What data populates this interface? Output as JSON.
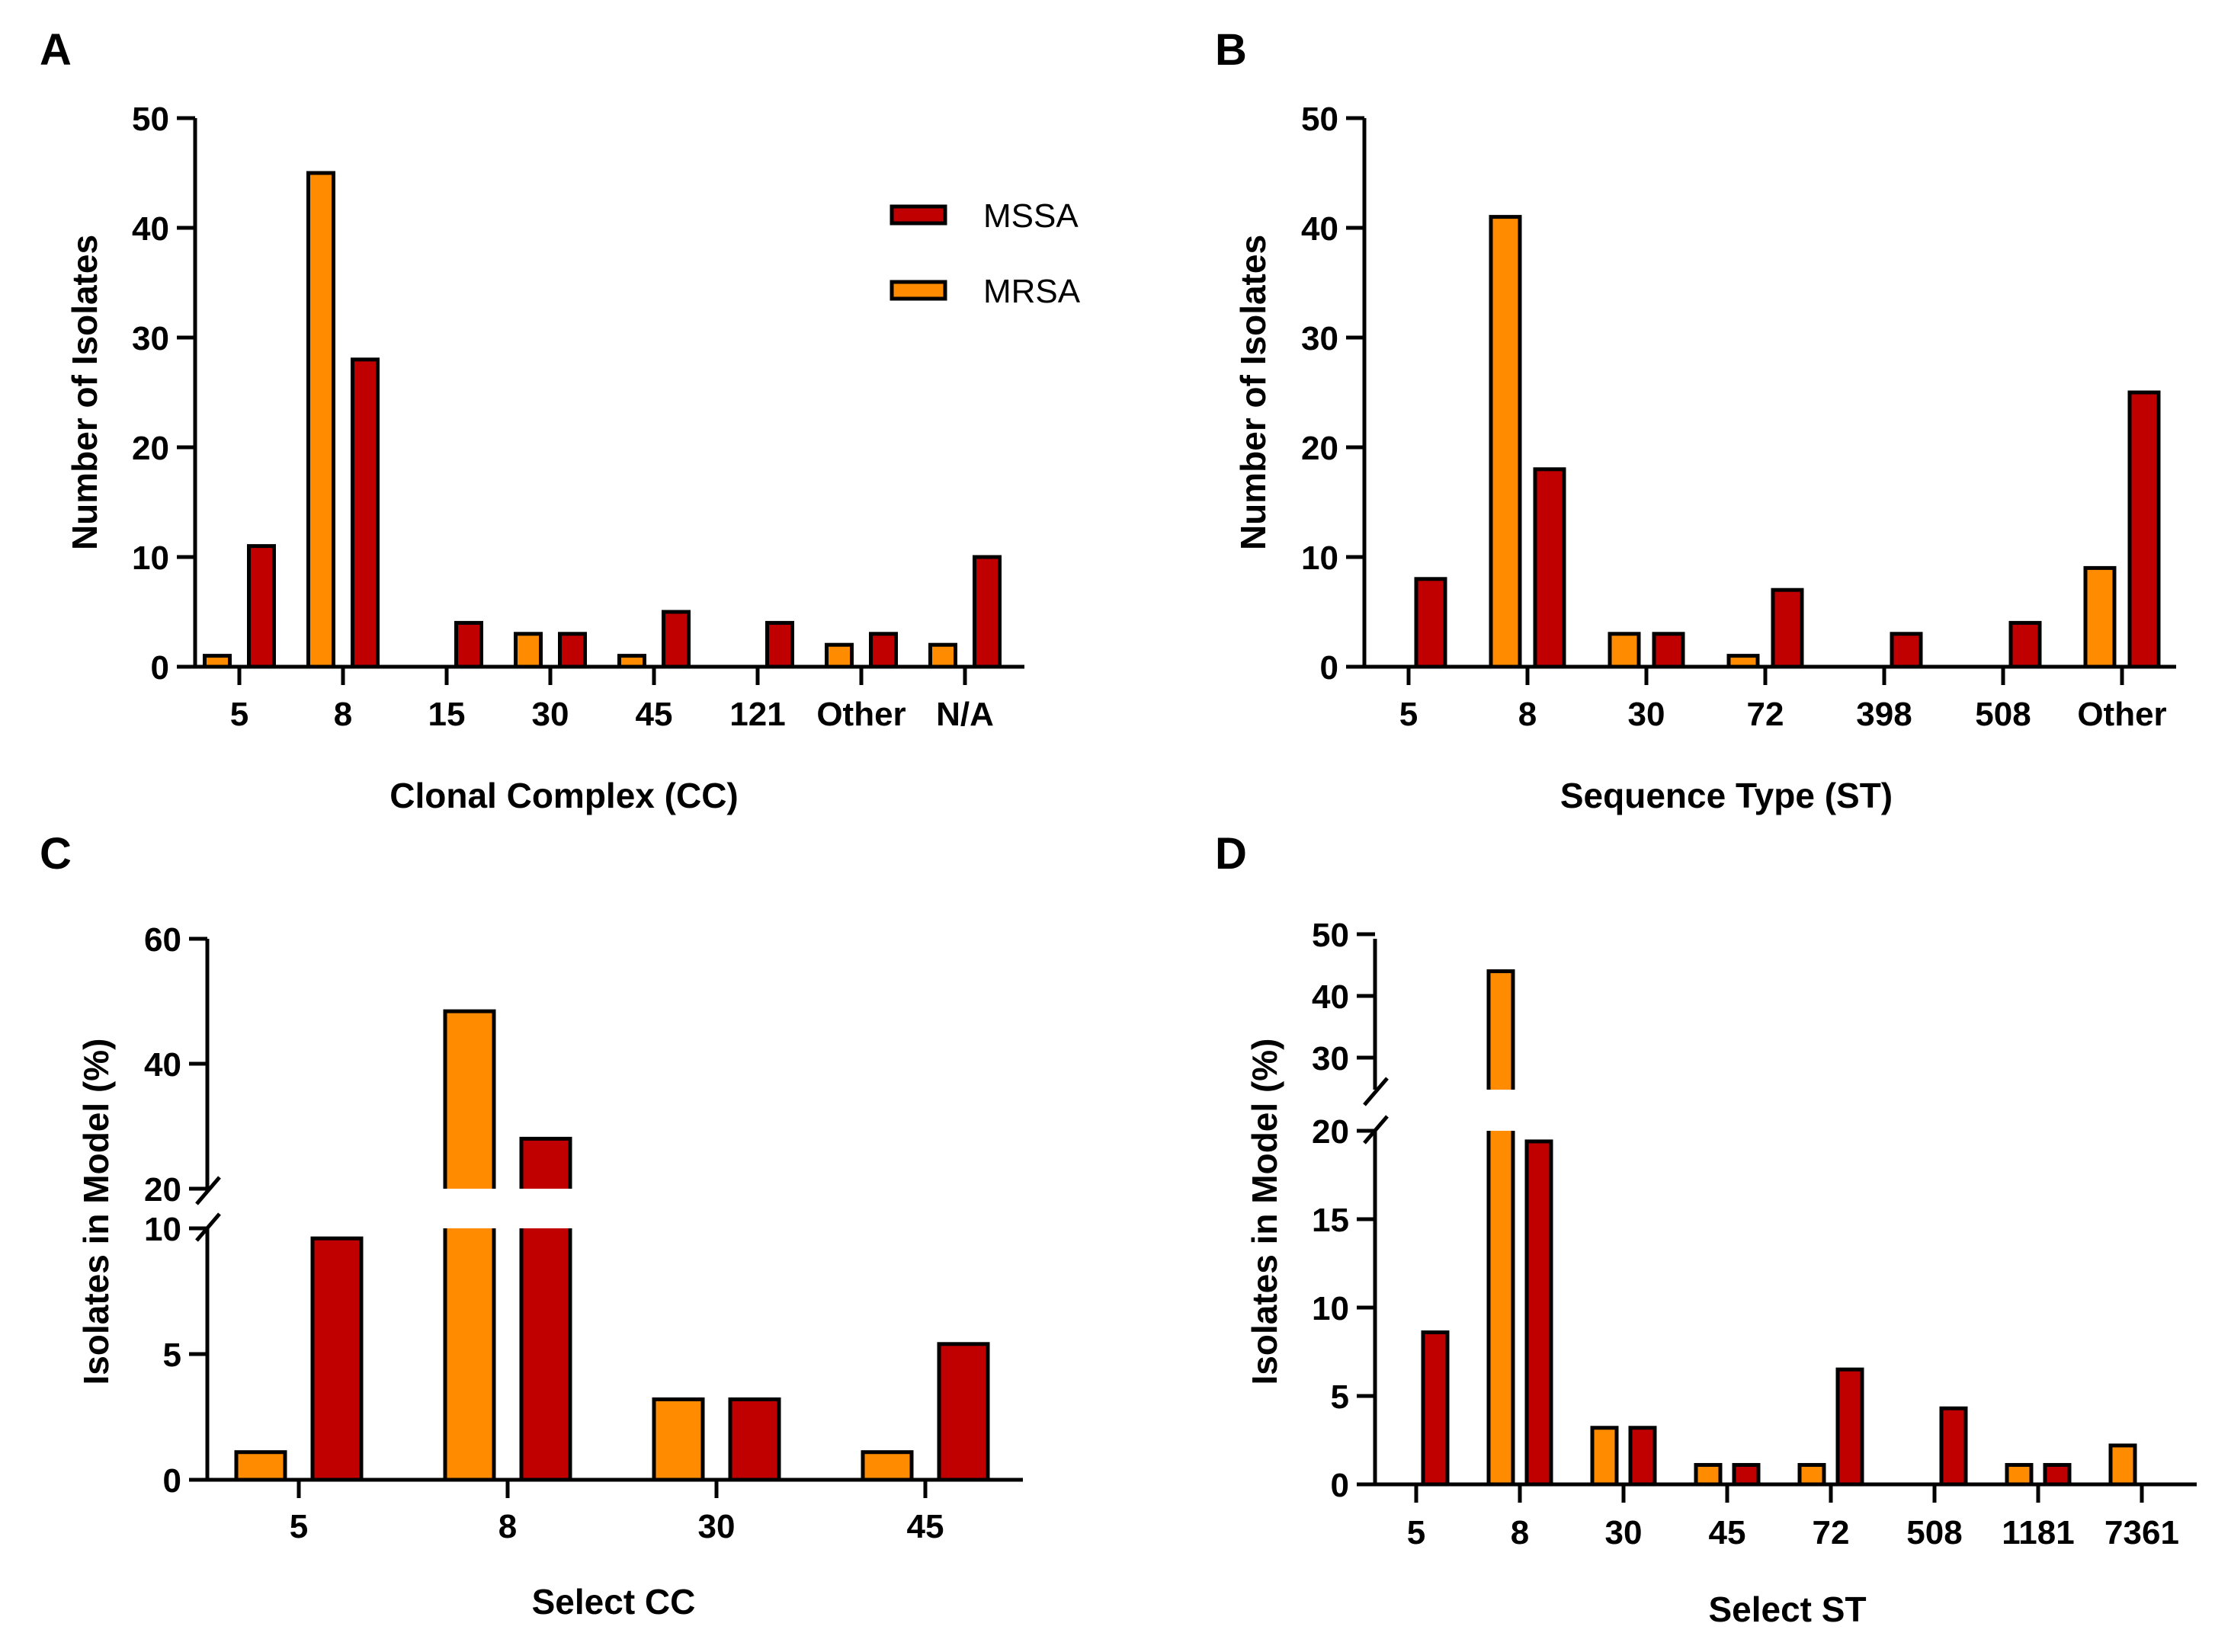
{
  "colors": {
    "MSSA": "#c00000",
    "MRSA": "#ff8c00",
    "stroke": "#000000"
  },
  "legend": {
    "items": [
      "MSSA",
      "MRSA"
    ]
  },
  "chart_data": [
    {
      "panel": "A",
      "type": "bar",
      "xlabel": "Clonal  Complex (CC)",
      "ylabel": "Number of Isolates",
      "ylim": [
        0,
        50
      ],
      "yticks": [
        0,
        10,
        20,
        30,
        40,
        50
      ],
      "categories": [
        "5",
        "8",
        "15",
        "30",
        "45",
        "121",
        "Other",
        "N/A"
      ],
      "series": [
        {
          "name": "MRSA",
          "values": [
            1,
            45,
            0,
            3,
            1,
            0,
            2,
            2
          ]
        },
        {
          "name": "MSSA",
          "values": [
            11,
            28,
            4,
            3,
            5,
            4,
            3,
            10
          ]
        }
      ],
      "legend_position": "top-right"
    },
    {
      "panel": "B",
      "type": "bar",
      "xlabel": "Sequence Type (ST)",
      "ylabel": "Number of Isolates",
      "ylim": [
        0,
        50
      ],
      "yticks": [
        0,
        10,
        20,
        30,
        40,
        50
      ],
      "categories": [
        "5",
        "8",
        "30",
        "72",
        "398",
        "508",
        "Other"
      ],
      "series": [
        {
          "name": "MRSA",
          "values": [
            0,
            41,
            3,
            1,
            0,
            0,
            9
          ]
        },
        {
          "name": "MSSA",
          "values": [
            8,
            18,
            3,
            7,
            3,
            4,
            25
          ]
        }
      ]
    },
    {
      "panel": "C",
      "type": "bar",
      "xlabel": "Select CC",
      "ylabel": "Isolates in Model (%)",
      "ylim": [
        0,
        60
      ],
      "axis_break": [
        10,
        20
      ],
      "yticks_lower": [
        0,
        5,
        10
      ],
      "yticks_upper": [
        20,
        40,
        60
      ],
      "categories": [
        "5",
        "8",
        "30",
        "45"
      ],
      "series": [
        {
          "name": "MRSA",
          "values": [
            1.1,
            48.4,
            3.2,
            1.1
          ]
        },
        {
          "name": "MSSA",
          "values": [
            9.6,
            28.0,
            3.2,
            5.4
          ]
        }
      ]
    },
    {
      "panel": "D",
      "type": "bar",
      "xlabel": "Select ST",
      "ylabel": "Isolates in Model (%)",
      "ylim": [
        0,
        50
      ],
      "axis_break": [
        20,
        27
      ],
      "yticks_lower": [
        0,
        5,
        10,
        15,
        20
      ],
      "yticks_upper": [
        30,
        40,
        50
      ],
      "categories": [
        "5",
        "8",
        "30",
        "45",
        "72",
        "508",
        "1181",
        "7361"
      ],
      "series": [
        {
          "name": "MRSA",
          "values": [
            0,
            44,
            3.2,
            1.1,
            1.1,
            0,
            1.1,
            2.2
          ]
        },
        {
          "name": "MSSA",
          "values": [
            8.6,
            19.4,
            3.2,
            1.1,
            6.5,
            4.3,
            1.1,
            0
          ]
        }
      ]
    }
  ]
}
